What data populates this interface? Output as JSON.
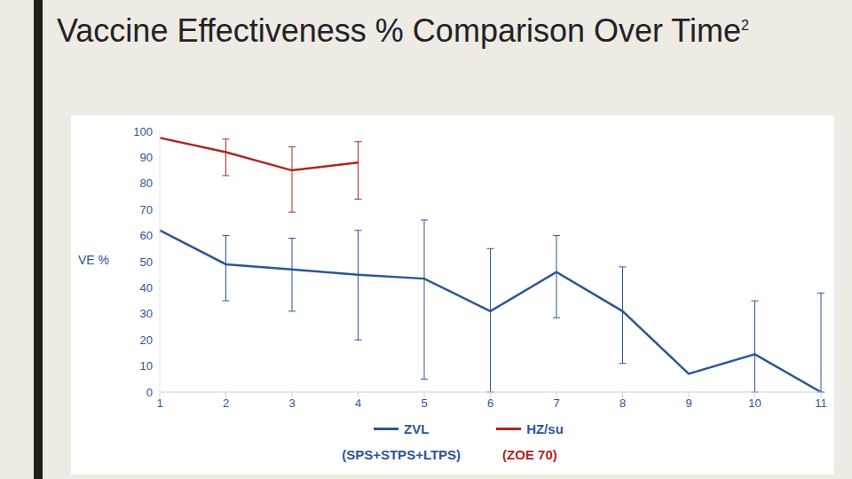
{
  "chart_data": {
    "type": "line",
    "title": "Vaccine Effectiveness % Comparison Over Time",
    "title_superscript": "2",
    "y_label": "VE %",
    "categories": [
      1,
      2,
      3,
      4,
      5,
      6,
      7,
      8,
      9,
      10,
      11
    ],
    "series": [
      {
        "name": "ZVL",
        "annotation": "(SPS+STPS+LTPS)",
        "color": "#2e5597",
        "values": [
          62,
          49,
          47,
          45,
          43.5,
          31,
          46,
          31,
          7,
          14.5,
          0
        ],
        "error": [
          null,
          [
            35,
            60
          ],
          [
            31,
            59
          ],
          [
            20,
            62
          ],
          [
            5,
            66
          ],
          [
            0,
            55
          ],
          [
            28.5,
            60
          ],
          [
            11,
            48
          ],
          null,
          [
            0,
            35
          ],
          [
            0,
            38
          ]
        ]
      },
      {
        "name": "HZ/su",
        "annotation": "(ZOE 70)",
        "color": "#b0261f",
        "values": [
          97.5,
          92,
          85,
          88,
          null,
          null,
          null,
          null,
          null,
          null,
          null
        ],
        "error": [
          null,
          [
            83,
            97
          ],
          [
            69,
            94
          ],
          [
            74,
            96
          ],
          null,
          null,
          null,
          null,
          null,
          null,
          null
        ]
      }
    ],
    "ylim": [
      0,
      100
    ],
    "yticks": [
      0,
      10,
      20,
      30,
      40,
      50,
      60,
      70,
      80,
      90,
      100
    ],
    "grid": false
  }
}
